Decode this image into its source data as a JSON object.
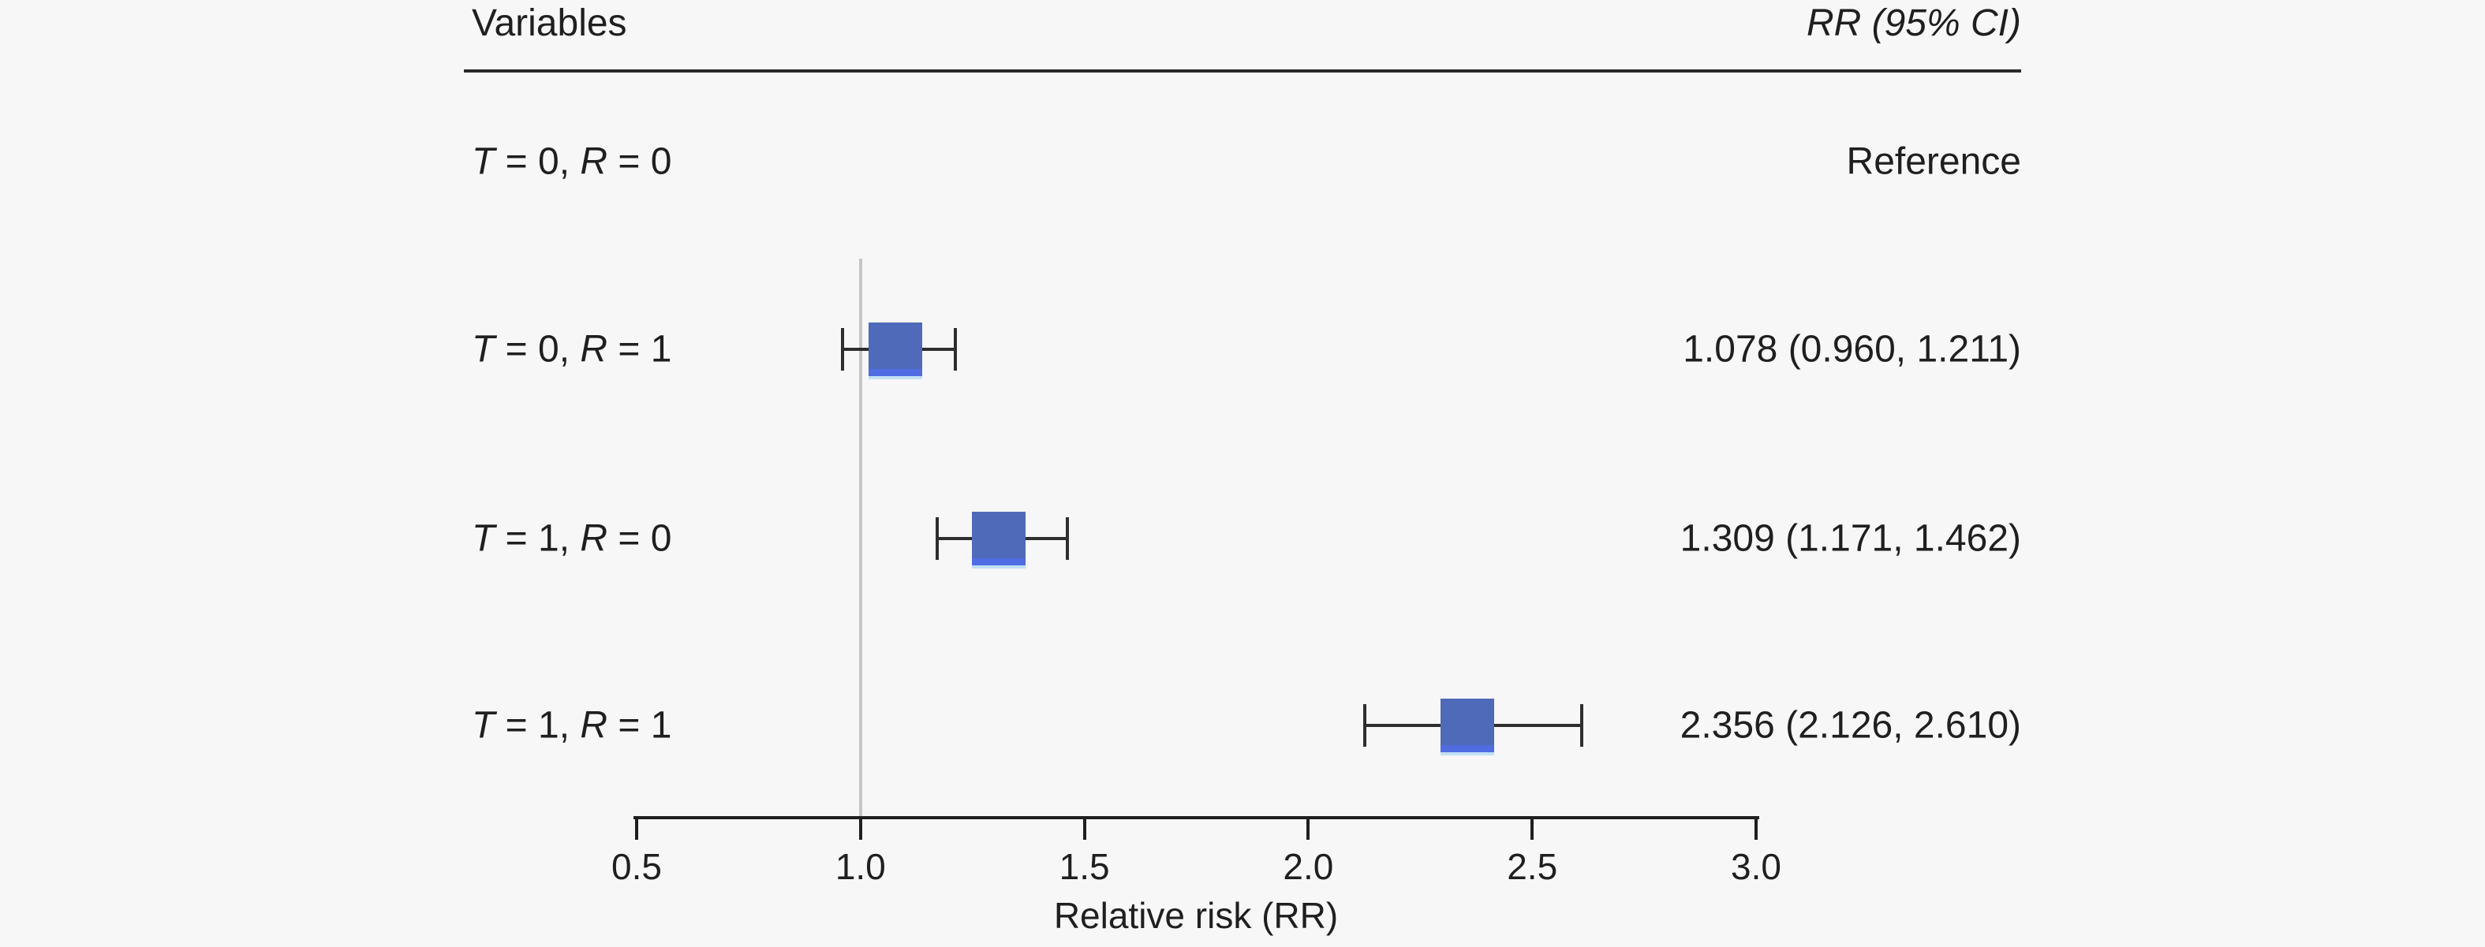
{
  "figure": {
    "background": "#f7f7f7",
    "text_color": "#1f1f1f",
    "marker_fill": "#4e6ab8",
    "marker_bottom_accent": "#4f6ce2",
    "whisker_color": "#2e2e2e",
    "refline_color": "#c6c6c6"
  },
  "header": {
    "variables_label": "Variables",
    "rr_label": "RR (95% CI)"
  },
  "axis": {
    "label": "Relative risk (RR)",
    "tick_labels": [
      "0.5",
      "1.0",
      "1.5",
      "2.0",
      "2.5",
      "3.0"
    ]
  },
  "rows": [
    {
      "label": "T = 0, R = 0",
      "label_parts": [
        {
          "text": "T",
          "italic": true
        },
        {
          "text": " = 0, ",
          "italic": false
        },
        {
          "text": "R",
          "italic": true
        },
        {
          "text": " = 0",
          "italic": false
        }
      ],
      "rr_text": "Reference",
      "estimate": null,
      "ci_low": null,
      "ci_high": null
    },
    {
      "label": "T = 0, R = 1",
      "label_parts": [
        {
          "text": "T",
          "italic": true
        },
        {
          "text": " = 0, ",
          "italic": false
        },
        {
          "text": "R",
          "italic": true
        },
        {
          "text": " = 1",
          "italic": false
        }
      ],
      "rr_text": "1.078 (0.960, 1.211)",
      "estimate": 1.078,
      "ci_low": 0.96,
      "ci_high": 1.211
    },
    {
      "label": "T = 1, R = 0",
      "label_parts": [
        {
          "text": "T",
          "italic": true
        },
        {
          "text": " = 1, ",
          "italic": false
        },
        {
          "text": "R",
          "italic": true
        },
        {
          "text": " = 0",
          "italic": false
        }
      ],
      "rr_text": "1.309 (1.171, 1.462)",
      "estimate": 1.309,
      "ci_low": 1.171,
      "ci_high": 1.462
    },
    {
      "label": "T = 1, R = 1",
      "label_parts": [
        {
          "text": "T",
          "italic": true
        },
        {
          "text": " = 1, ",
          "italic": false
        },
        {
          "text": "R",
          "italic": true
        },
        {
          "text": " = 1",
          "italic": false
        }
      ],
      "rr_text": "2.356 (2.126, 2.610)",
      "estimate": 2.356,
      "ci_low": 2.126,
      "ci_high": 2.61
    }
  ],
  "chart_data": {
    "type": "scatter",
    "subtype": "forest-plot",
    "title": "",
    "xlabel": "Relative risk (RR)",
    "ylabel": "",
    "xlim": [
      0.5,
      3.0
    ],
    "x_ticks": [
      0.5,
      1.0,
      1.5,
      2.0,
      2.5,
      3.0
    ],
    "reference_line_x": 1.0,
    "grid": false,
    "legend": false,
    "categories": [
      "T = 0, R = 0",
      "T = 0, R = 1",
      "T = 1, R = 0",
      "T = 1, R = 1"
    ],
    "series": [
      {
        "name": "RR (95% CI)",
        "values": [
          null,
          1.078,
          1.309,
          2.356
        ],
        "ci_low": [
          null,
          0.96,
          1.171,
          2.126
        ],
        "ci_high": [
          null,
          1.211,
          1.462,
          2.61
        ]
      }
    ],
    "value_labels": [
      "Reference",
      "1.078 (0.960, 1.211)",
      "1.309 (1.171, 1.462)",
      "2.356 (2.126, 2.610)"
    ]
  }
}
